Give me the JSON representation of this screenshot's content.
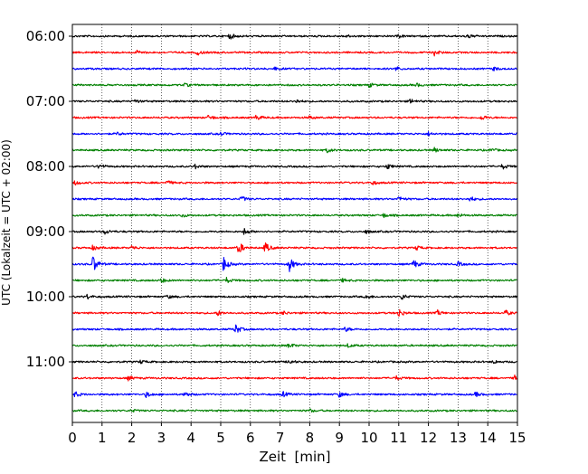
{
  "chart_data": {
    "type": "helicorder",
    "xlabel": "Zeit  [min]",
    "ylabel": "UTC (Lokalzeit = UTC + 02:00)",
    "xlim": [
      0,
      15
    ],
    "x_ticks": [
      0,
      1,
      2,
      3,
      4,
      5,
      6,
      7,
      8,
      9,
      10,
      11,
      12,
      13,
      14,
      15
    ],
    "x_tick_labels": [
      "0",
      "1",
      "2",
      "3",
      "4",
      "5",
      "6",
      "7",
      "8",
      "9",
      "10",
      "11",
      "12",
      "13",
      "14",
      "15"
    ],
    "y_tick_labels": [
      "06:00",
      "07:00",
      "08:00",
      "09:00",
      "10:00",
      "11:00"
    ],
    "trace_interval_min": 15,
    "trace_colors": [
      "#000000",
      "#ff0000",
      "#0000ff",
      "#008000"
    ],
    "vertical_grid": true,
    "grid_style": "dotted",
    "traces": [
      {
        "start": "06:00",
        "color": "#000000",
        "events": [
          {
            "t": 5.3,
            "amp": 0.4
          },
          {
            "t": 9.2,
            "amp": 0.22
          },
          {
            "t": 11.0,
            "amp": 0.2
          },
          {
            "t": 13.3,
            "amp": 0.35
          }
        ]
      },
      {
        "start": "06:15",
        "color": "#ff0000",
        "events": [
          {
            "t": 2.2,
            "amp": 0.3
          },
          {
            "t": 4.2,
            "amp": 0.35
          },
          {
            "t": 12.2,
            "amp": 0.4
          }
        ]
      },
      {
        "start": "06:30",
        "color": "#0000ff",
        "events": [
          {
            "t": 6.8,
            "amp": 0.22
          },
          {
            "t": 10.9,
            "amp": 0.28
          },
          {
            "t": 14.2,
            "amp": 0.22
          }
        ]
      },
      {
        "start": "06:45",
        "color": "#008000",
        "events": [
          {
            "t": 3.8,
            "amp": 0.2
          },
          {
            "t": 10.0,
            "amp": 0.28
          },
          {
            "t": 11.6,
            "amp": 0.22
          }
        ]
      },
      {
        "start": "07:00",
        "color": "#000000",
        "events": [
          {
            "t": 2.1,
            "amp": 0.25
          },
          {
            "t": 7.5,
            "amp": 0.3
          },
          {
            "t": 11.4,
            "amp": 0.3
          }
        ]
      },
      {
        "start": "07:15",
        "color": "#ff0000",
        "events": [
          {
            "t": 4.6,
            "amp": 0.35
          },
          {
            "t": 6.2,
            "amp": 0.35
          },
          {
            "t": 8.0,
            "amp": 0.22
          },
          {
            "t": 13.8,
            "amp": 0.35
          }
        ]
      },
      {
        "start": "07:30",
        "color": "#0000ff",
        "events": [
          {
            "t": 1.5,
            "amp": 0.22
          },
          {
            "t": 5.0,
            "amp": 0.22
          },
          {
            "t": 12.0,
            "amp": 0.22
          }
        ]
      },
      {
        "start": "07:45",
        "color": "#008000",
        "events": [
          {
            "t": 8.6,
            "amp": 0.3
          },
          {
            "t": 12.2,
            "amp": 0.3
          },
          {
            "t": 14.1,
            "amp": 0.25
          }
        ]
      },
      {
        "start": "08:00",
        "color": "#000000",
        "events": [
          {
            "t": 0.9,
            "amp": 0.35
          },
          {
            "t": 4.1,
            "amp": 0.35
          },
          {
            "t": 10.6,
            "amp": 0.4
          },
          {
            "t": 14.5,
            "amp": 0.35
          }
        ]
      },
      {
        "start": "08:15",
        "color": "#ff0000",
        "events": [
          {
            "t": 0.1,
            "amp": 0.3
          },
          {
            "t": 3.2,
            "amp": 0.28
          },
          {
            "t": 10.1,
            "amp": 0.28
          }
        ]
      },
      {
        "start": "08:30",
        "color": "#0000ff",
        "events": [
          {
            "t": 5.7,
            "amp": 0.4
          },
          {
            "t": 11.0,
            "amp": 0.35
          },
          {
            "t": 13.4,
            "amp": 0.35
          }
        ]
      },
      {
        "start": "08:45",
        "color": "#008000",
        "events": [
          {
            "t": 3.7,
            "amp": 0.25
          },
          {
            "t": 10.5,
            "amp": 0.25
          },
          {
            "t": 13.0,
            "amp": 0.25
          }
        ]
      },
      {
        "start": "09:00",
        "color": "#000000",
        "events": [
          {
            "t": 1.1,
            "amp": 0.35
          },
          {
            "t": 5.8,
            "amp": 0.45
          },
          {
            "t": 9.9,
            "amp": 0.22
          }
        ]
      },
      {
        "start": "09:15",
        "color": "#ff0000",
        "events": [
          {
            "t": 0.7,
            "amp": 0.35
          },
          {
            "t": 2.0,
            "amp": 0.3
          },
          {
            "t": 5.6,
            "amp": 0.9
          },
          {
            "t": 6.5,
            "amp": 0.75
          },
          {
            "t": 11.6,
            "amp": 0.3
          }
        ]
      },
      {
        "start": "09:30",
        "color": "#0000ff",
        "events": [
          {
            "t": 0.7,
            "amp": 1.2
          },
          {
            "t": 5.1,
            "amp": 1.0
          },
          {
            "t": 7.3,
            "amp": 1.1
          },
          {
            "t": 11.5,
            "amp": 0.6
          },
          {
            "t": 13.0,
            "amp": 0.3
          }
        ]
      },
      {
        "start": "09:45",
        "color": "#008000",
        "events": [
          {
            "t": 3.0,
            "amp": 0.3
          },
          {
            "t": 5.2,
            "amp": 0.35
          },
          {
            "t": 9.1,
            "amp": 0.22
          }
        ]
      },
      {
        "start": "10:00",
        "color": "#000000",
        "events": [
          {
            "t": 0.5,
            "amp": 0.3
          },
          {
            "t": 3.2,
            "amp": 0.25
          },
          {
            "t": 9.9,
            "amp": 0.3
          },
          {
            "t": 11.1,
            "amp": 0.4
          }
        ]
      },
      {
        "start": "10:15",
        "color": "#ff0000",
        "events": [
          {
            "t": 4.9,
            "amp": 0.35
          },
          {
            "t": 7.1,
            "amp": 0.25
          },
          {
            "t": 11.0,
            "amp": 0.6
          },
          {
            "t": 12.3,
            "amp": 0.35
          },
          {
            "t": 14.6,
            "amp": 0.35
          }
        ]
      },
      {
        "start": "10:30",
        "color": "#0000ff",
        "events": [
          {
            "t": 5.5,
            "amp": 0.7
          },
          {
            "t": 9.2,
            "amp": 0.3
          }
        ]
      },
      {
        "start": "10:45",
        "color": "#008000",
        "events": [
          {
            "t": 7.3,
            "amp": 0.35
          },
          {
            "t": 9.3,
            "amp": 0.25
          }
        ]
      },
      {
        "start": "11:00",
        "color": "#000000",
        "events": [
          {
            "t": 2.3,
            "amp": 0.22
          },
          {
            "t": 7.3,
            "amp": 0.35
          },
          {
            "t": 14.2,
            "amp": 0.22
          }
        ]
      },
      {
        "start": "11:15",
        "color": "#ff0000",
        "events": [
          {
            "t": 1.9,
            "amp": 0.3
          },
          {
            "t": 10.9,
            "amp": 0.3
          },
          {
            "t": 14.9,
            "amp": 0.35
          }
        ]
      },
      {
        "start": "11:30",
        "color": "#0000ff",
        "events": [
          {
            "t": 0.1,
            "amp": 0.35
          },
          {
            "t": 2.5,
            "amp": 0.4
          },
          {
            "t": 3.8,
            "amp": 0.35
          },
          {
            "t": 7.1,
            "amp": 0.35
          },
          {
            "t": 9.0,
            "amp": 0.35
          },
          {
            "t": 13.6,
            "amp": 0.3
          }
        ]
      },
      {
        "start": "11:45",
        "color": "#008000",
        "events": [
          {
            "t": 2.0,
            "amp": 0.2
          },
          {
            "t": 8.0,
            "amp": 0.2
          }
        ]
      }
    ]
  }
}
